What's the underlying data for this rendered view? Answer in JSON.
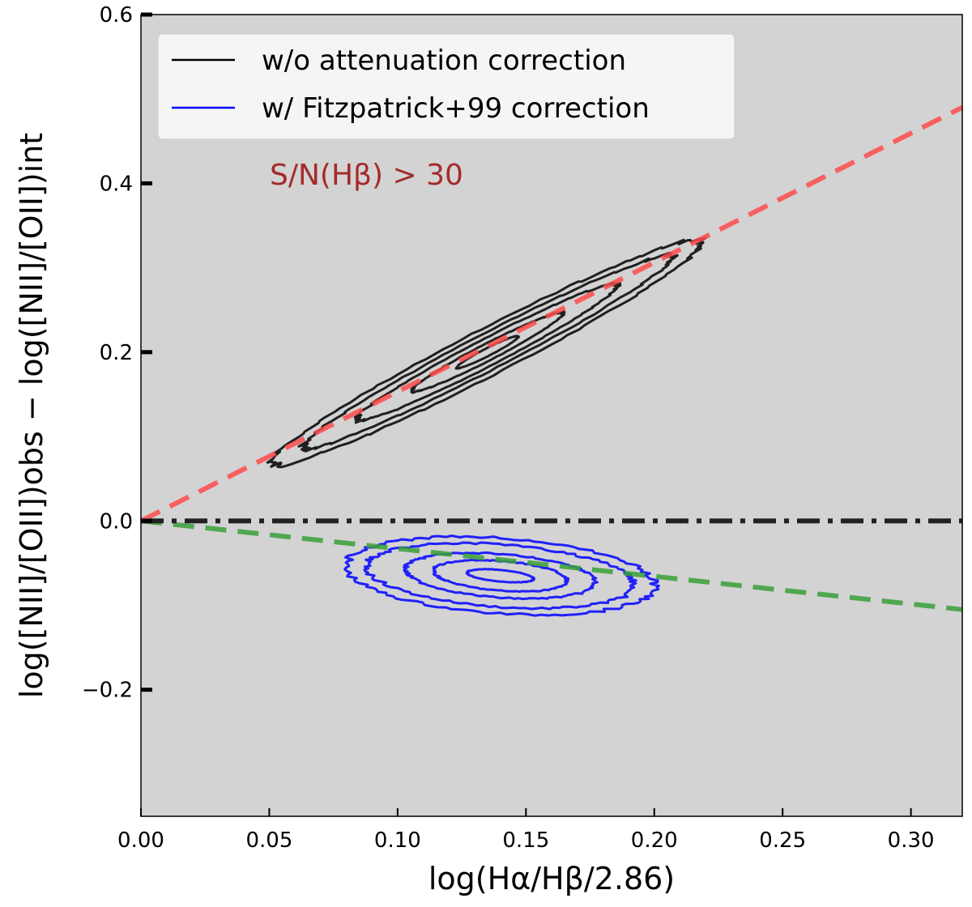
{
  "chart_data": {
    "type": "line",
    "title": "",
    "xlabel": "log(Hα/Hβ/2.86)",
    "ylabel": "log([NII]/[OII])obs − log([NII]/[OII])int",
    "xlim": [
      0.0,
      0.32
    ],
    "ylim": [
      -0.35,
      0.6
    ],
    "x_ticks": [
      0.0,
      0.05,
      0.1,
      0.15,
      0.2,
      0.25,
      0.3
    ],
    "x_tick_labels": [
      "0.00",
      "0.05",
      "0.10",
      "0.15",
      "0.20",
      "0.25",
      "0.30"
    ],
    "y_ticks": [
      -0.2,
      0.0,
      0.2,
      0.4,
      0.6
    ],
    "y_tick_labels": [
      "−0.2",
      "0.0",
      "0.2",
      "0.4",
      "0.6"
    ],
    "background": "#d3d3d3",
    "grid": false,
    "legend_position": "top-left",
    "legend": [
      {
        "label": "w/o attenuation correction",
        "color": "#000000"
      },
      {
        "label": "w/ Fitzpatrick+99 correction",
        "color": "#0000ff"
      }
    ],
    "annotation": {
      "text": "S/N(Hβ) > 30",
      "x": 0.05,
      "y": 0.41,
      "color": "#a52a2a"
    },
    "reference_lines": [
      {
        "name": "red dashed fit",
        "style": "dashed",
        "color": "#ff4c4c",
        "x": [
          0.0,
          0.32
        ],
        "y": [
          0.0,
          0.49
        ]
      },
      {
        "name": "green dashed fit",
        "style": "dashed",
        "color": "#3aa03a",
        "x": [
          0.0,
          0.32
        ],
        "y": [
          0.0,
          -0.105
        ]
      },
      {
        "name": "zero line",
        "style": "dashdot",
        "color": "#222222",
        "x": [
          0.0,
          0.32
        ],
        "y": [
          0.0,
          0.0
        ]
      }
    ],
    "contours": [
      {
        "name": "w/o attenuation correction",
        "color": "#000000",
        "center": [
          0.135,
          0.2
        ],
        "angle_deg": 56.9,
        "levels": [
          {
            "semi_major": 0.338,
            "semi_minor": 0.036
          },
          {
            "semi_major": 0.29,
            "semi_minor": 0.028
          },
          {
            "semi_major": 0.205,
            "semi_minor": 0.021
          },
          {
            "semi_major": 0.118,
            "semi_minor": 0.013
          },
          {
            "semi_major": 0.048,
            "semi_minor": 0.006
          }
        ]
      },
      {
        "name": "w/ Fitzpatrick+99 correction",
        "color": "#0000ff",
        "center": [
          0.14,
          -0.065
        ],
        "angle_deg": -19.1,
        "levels": [
          {
            "semi_major": 0.138,
            "semi_minor": 0.092
          },
          {
            "semi_major": 0.12,
            "semi_minor": 0.076
          },
          {
            "semi_major": 0.085,
            "semi_minor": 0.053
          },
          {
            "semi_major": 0.06,
            "semi_minor": 0.036
          },
          {
            "semi_major": 0.03,
            "semi_minor": 0.014
          }
        ]
      }
    ]
  }
}
